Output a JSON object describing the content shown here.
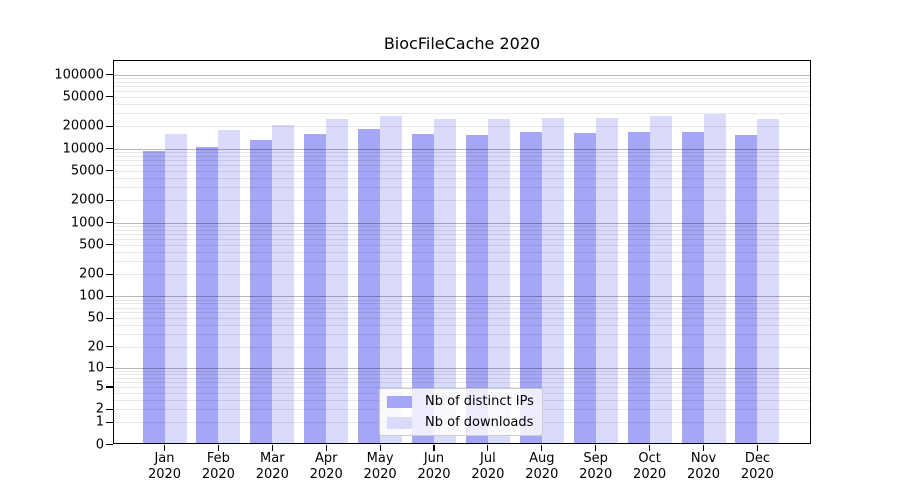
{
  "chart_data": {
    "type": "bar",
    "title": "BiocFileCache 2020",
    "categories": [
      "Jan 2020",
      "Feb 2020",
      "Mar 2020",
      "Apr 2020",
      "May 2020",
      "Jun 2020",
      "Jul 2020",
      "Aug 2020",
      "Sep 2020",
      "Oct 2020",
      "Nov 2020",
      "Dec 2020"
    ],
    "months": [
      "Jan",
      "Feb",
      "Mar",
      "Apr",
      "May",
      "Jun",
      "Jul",
      "Aug",
      "Sep",
      "Oct",
      "Nov",
      "Dec"
    ],
    "year": "2020",
    "series": [
      {
        "name": "Nb of distinct IPs",
        "color": "#a6a6f7",
        "values": [
          9200,
          10600,
          13200,
          15800,
          18200,
          16000,
          15500,
          16800,
          16100,
          16800,
          16800,
          15500
        ]
      },
      {
        "name": "Nb of downloads",
        "color": "#dadafb",
        "values": [
          15600,
          18100,
          20900,
          24900,
          28000,
          25400,
          25400,
          26200,
          25700,
          27700,
          29700,
          24900
        ]
      }
    ],
    "yscale": "log(value+1)",
    "ylim": [
      0,
      157000
    ],
    "yticks": [
      0,
      1,
      2,
      5,
      10,
      20,
      50,
      100,
      200,
      500,
      1000,
      2000,
      5000,
      10000,
      20000,
      50000,
      100000
    ],
    "grid": true,
    "legend_position": "lower center",
    "axis_color": "#000000",
    "grid_minor_color": "#e8e8e8",
    "grid_major_color": "#b8b8b8"
  }
}
